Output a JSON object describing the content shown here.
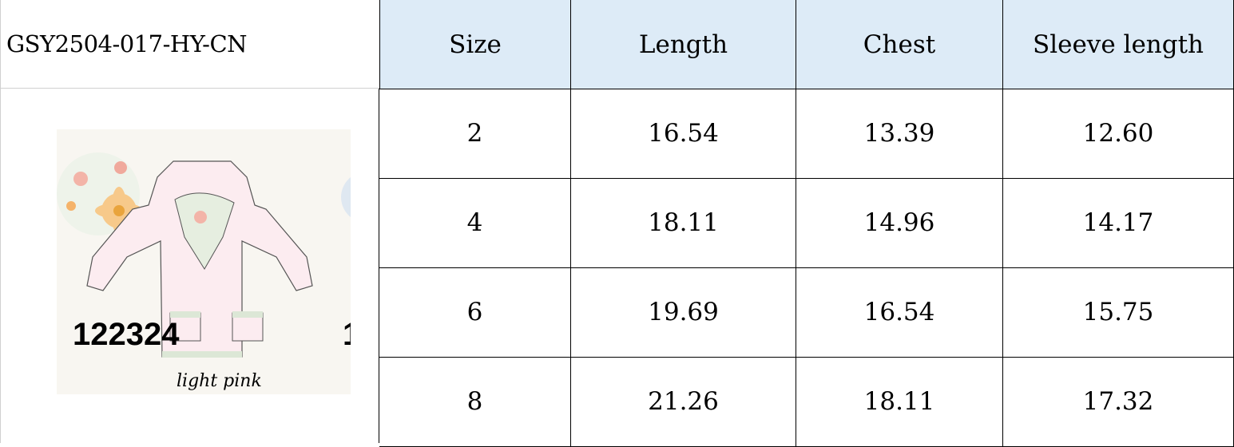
{
  "product_code": "GSY2504-017-HY-CN",
  "product_image": {
    "label_number": "122324",
    "color_name": "light pink",
    "colors": {
      "jacket": "#fcecf0",
      "background": "#f8f6f1"
    }
  },
  "table": {
    "headers": [
      "Size",
      "Length",
      "Chest",
      "Sleeve length"
    ],
    "header_bg": "#ddebf7",
    "rows": [
      [
        "2",
        "16.54",
        "13.39",
        "12.60"
      ],
      [
        "4",
        "18.11",
        "14.96",
        "14.17"
      ],
      [
        "6",
        "19.69",
        "16.54",
        "15.75"
      ],
      [
        "8",
        "21.26",
        "18.11",
        "17.32"
      ]
    ]
  }
}
